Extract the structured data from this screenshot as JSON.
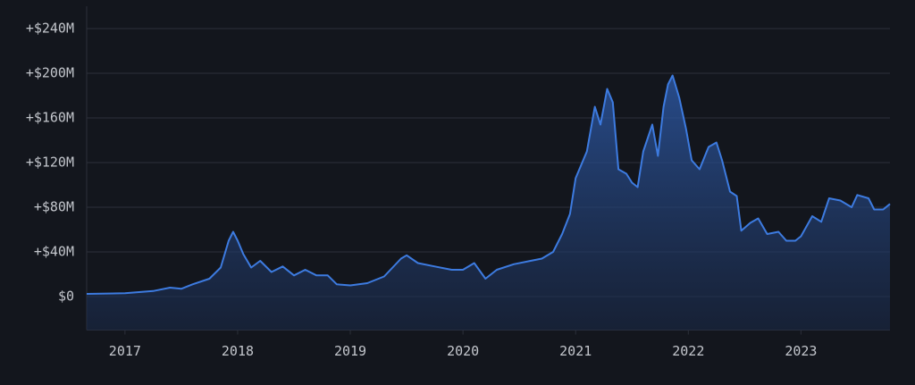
{
  "chart_data": {
    "type": "area",
    "color": "#3d7be0",
    "grid": true,
    "xlim": [
      2016.66,
      2023.79
    ],
    "xticks": [
      2017,
      2018,
      2019,
      2020,
      2021,
      2022,
      2023
    ],
    "ylim": [
      -30,
      260
    ],
    "yticks": [
      {
        "value": 0,
        "label": "$0"
      },
      {
        "value": 40,
        "label": "+$40M"
      },
      {
        "value": 80,
        "label": "+$80M"
      },
      {
        "value": 120,
        "label": "+$120M"
      },
      {
        "value": 160,
        "label": "+$160M"
      },
      {
        "value": 200,
        "label": "+$200M"
      },
      {
        "value": 240,
        "label": "+$240M"
      }
    ],
    "x": [
      2016.66,
      2017.0,
      2017.25,
      2017.4,
      2017.5,
      2017.6,
      2017.75,
      2017.85,
      2017.92,
      2017.96,
      2018.0,
      2018.05,
      2018.12,
      2018.2,
      2018.3,
      2018.4,
      2018.5,
      2018.6,
      2018.7,
      2018.8,
      2018.88,
      2019.0,
      2019.15,
      2019.3,
      2019.45,
      2019.5,
      2019.6,
      2019.75,
      2019.9,
      2020.0,
      2020.1,
      2020.2,
      2020.3,
      2020.45,
      2020.6,
      2020.7,
      2020.8,
      2020.88,
      2020.95,
      2021.0,
      2021.05,
      2021.1,
      2021.17,
      2021.22,
      2021.28,
      2021.33,
      2021.38,
      2021.45,
      2021.5,
      2021.55,
      2021.6,
      2021.68,
      2021.73,
      2021.78,
      2021.82,
      2021.86,
      2021.92,
      2021.98,
      2022.03,
      2022.1,
      2022.18,
      2022.25,
      2022.3,
      2022.37,
      2022.43,
      2022.47,
      2022.55,
      2022.62,
      2022.7,
      2022.8,
      2022.87,
      2022.95,
      2023.0,
      2023.1,
      2023.18,
      2023.25,
      2023.35,
      2023.45,
      2023.5,
      2023.6,
      2023.65,
      2023.73,
      2023.79
    ],
    "values": [
      2.4,
      3,
      5,
      8,
      7,
      11,
      16,
      26,
      50,
      58,
      50,
      38,
      26,
      32,
      22,
      27,
      19,
      24,
      19,
      19,
      11,
      10,
      12,
      18,
      34,
      37,
      30,
      27,
      24,
      24,
      30,
      16,
      24,
      29,
      32,
      34,
      40,
      56,
      74,
      106,
      118,
      130,
      170,
      154,
      186,
      174,
      114,
      110,
      102,
      98,
      130,
      154,
      126,
      170,
      190,
      198,
      178,
      150,
      122,
      114,
      134,
      138,
      122,
      94,
      90,
      59,
      66,
      70,
      56,
      58,
      50,
      50,
      54,
      72,
      67,
      88,
      86,
      80,
      91,
      88,
      78,
      78,
      83
    ]
  }
}
